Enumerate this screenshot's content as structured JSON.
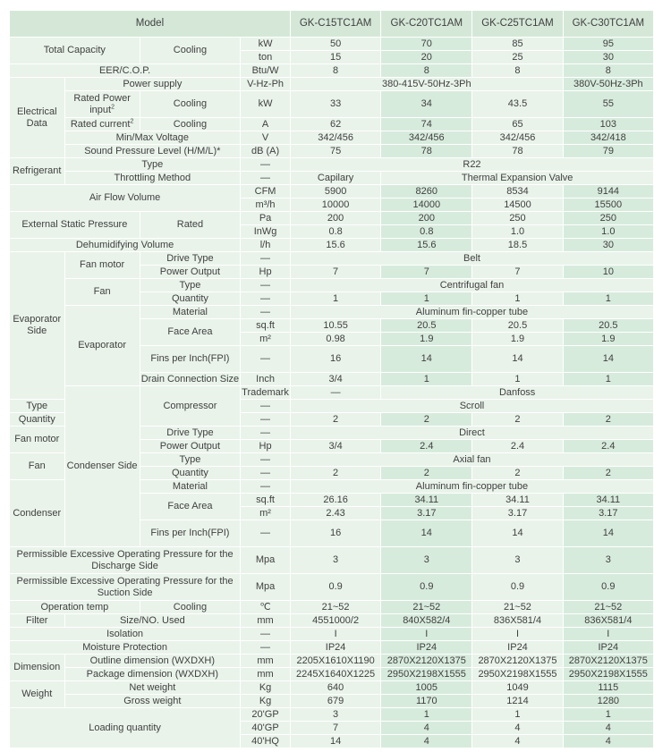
{
  "header": {
    "model_label": "Model",
    "models": [
      "GK-C15TC1AM",
      "GK-C20TC1AM",
      "GK-C25TC1AM",
      "GK-C30TC1AM"
    ]
  },
  "total_capacity": {
    "label": "Total Capacity",
    "sub": "Cooling",
    "kw_unit": "kW",
    "kw": [
      "50",
      "70",
      "85",
      "95"
    ],
    "ton_unit": "ton",
    "ton": [
      "15",
      "20",
      "25",
      "30"
    ]
  },
  "eer": {
    "label": "EER/C.O.P.",
    "unit": "Btu/W",
    "values": [
      "8",
      "8",
      "8",
      "8"
    ]
  },
  "electrical": {
    "label": "Electrical Data",
    "power_supply_label": "Power supply",
    "power_supply_unit": "V-Hz-Ph",
    "power_supply_c15_c25": "380-415V-50Hz-3Ph",
    "power_supply_c30": "380V-50Hz-3Ph",
    "rated_power_label": "Rated Power input",
    "rated_power_sup": "2",
    "rated_power_sub": "Cooling",
    "rated_power_unit": "kW",
    "rated_power": [
      "33",
      "34",
      "43.5",
      "55"
    ],
    "rated_current_label": "Rated current",
    "rated_current_sup": "2",
    "rated_current_sub": "Cooling",
    "rated_current_unit": "A",
    "rated_current": [
      "62",
      "74",
      "65",
      "103"
    ],
    "voltage_label": "Min/Max Voltage",
    "voltage_unit": "V",
    "voltage": [
      "342/456",
      "342/456",
      "342/456",
      "342/418"
    ]
  },
  "sound": {
    "label": "Sound Pressure Level (H/M/L)*",
    "unit": "dB (A)",
    "values": [
      "75",
      "78",
      "78",
      "79"
    ]
  },
  "refrigerant": {
    "label": "Refrigerant",
    "type_label": "Type",
    "dash": "—",
    "type_value": "R22",
    "throttle_label": "Throttling Method",
    "throttle_c15": "Capilary",
    "throttle_other": "Thermal Expansion Valve"
  },
  "airflow": {
    "label": "Air Flow Volume",
    "cfm_unit": "CFM",
    "cfm": [
      "5900",
      "8260",
      "8534",
      "9144"
    ],
    "m3_unit": "m³/h",
    "m3": [
      "10000",
      "14000",
      "14500",
      "15500"
    ]
  },
  "esp": {
    "label": "External Static Pressure",
    "sub": "Rated",
    "pa_unit": "Pa",
    "pa": [
      "200",
      "200",
      "250",
      "250"
    ],
    "inwg_unit": "InWg",
    "inwg": [
      "0.8",
      "0.8",
      "1.0",
      "1.0"
    ]
  },
  "dehum": {
    "label": "Dehumidifying Volume",
    "unit": "l/h",
    "values": [
      "15.6",
      "15.6",
      "18.5",
      "30"
    ]
  },
  "evaporator_side": {
    "label": "Evaporator Side",
    "fan_motor_label": "Fan motor",
    "drive_type_label": "Drive Type",
    "dash": "—",
    "drive_type_value": "Belt",
    "power_output_label": "Power Output",
    "power_output_unit": "Hp",
    "power_output": [
      "7",
      "7",
      "7",
      "10"
    ],
    "fan_label": "Fan",
    "fan_type_label": "Type",
    "fan_type_value": "Centrifugal  fan",
    "quantity_label": "Quantity",
    "fan_quantity": [
      "1",
      "1",
      "1",
      "1"
    ],
    "evaporator_label": "Evaporator",
    "material_label": "Material",
    "material_value": "Aluminum fin-copper tube",
    "face_area_label": "Face Area",
    "sqft_unit": "sq.ft",
    "face_sqft": [
      "10.55",
      "20.5",
      "20.5",
      "20.5"
    ],
    "m2_unit": "m²",
    "face_m2": [
      "0.98",
      "1.9",
      "1.9",
      "1.9"
    ],
    "fins_label": "Fins per Inch(FPI)",
    "fins": [
      "16",
      "14",
      "14",
      "14"
    ],
    "drain_label": "Drain Connection Size",
    "drain_unit": "Inch",
    "drain": [
      "3/4",
      "1",
      "1",
      "1"
    ]
  },
  "condenser_side": {
    "label": "Condenser Side",
    "dash": "—",
    "compressor_label": "Compressor",
    "trademark_label": "Trademark",
    "trademark_value": "Danfoss",
    "type_label": "Type",
    "type_value": "Scroll",
    "quantity_label": "Quantity",
    "compressor_quantity": [
      "2",
      "2",
      "2",
      "2"
    ],
    "fan_motor_label": "Fan motor",
    "drive_type_label": "Drive Type",
    "drive_type_value": "Direct",
    "power_output_label": "Power Output",
    "power_output_unit": "Hp",
    "power_output": [
      "3/4",
      "2.4",
      "2.4",
      "2.4"
    ],
    "fan_label": "Fan",
    "fan_type_value": "Axial fan",
    "fan_quantity": [
      "2",
      "2",
      "2",
      "2"
    ],
    "condenser_label": "Condenser",
    "material_label": "Material",
    "material_value": "Aluminum fin-copper tube",
    "face_area_label": "Face Area",
    "sqft_unit": "sq.ft",
    "face_sqft": [
      "26.16",
      "34.11",
      "34.11",
      "34.11"
    ],
    "m2_unit": "m²",
    "face_m2": [
      "2.43",
      "3.17",
      "3.17",
      "3.17"
    ],
    "fins_label": "Fins per Inch(FPI)",
    "fins": [
      "16",
      "14",
      "14",
      "14"
    ]
  },
  "pressure": {
    "discharge_label": "Permissible Excessive Operating Pressure for the Discharge Side",
    "unit": "Mpa",
    "discharge": [
      "3",
      "3",
      "3",
      "3"
    ],
    "suction_label": "Permissible Excessive Operating Pressure for the Suction Side",
    "suction": [
      "0.9",
      "0.9",
      "0.9",
      "0.9"
    ]
  },
  "op_temp": {
    "label": "Operation temp",
    "sub": "Cooling",
    "unit": "℃",
    "values": [
      "21~52",
      "21~52",
      "21~52",
      "21~52"
    ]
  },
  "filter": {
    "label": "Filter",
    "sub": "Size/NO. Used",
    "unit": "mm",
    "values": [
      "4551000/2",
      "840X582/4",
      "836X581/4",
      "836X581/4"
    ]
  },
  "isolation": {
    "label": "Isolation",
    "dash": "—",
    "values": [
      "I",
      "I",
      "I",
      "I"
    ]
  },
  "moisture": {
    "label": "Moisture Protection",
    "dash": "—",
    "values": [
      "IP24",
      "IP24",
      "IP24",
      "IP24"
    ]
  },
  "dimension": {
    "label": "Dimension",
    "unit": "mm",
    "outline_label": "Outline dimension (WXDXH)",
    "outline": [
      "2205X1610X1190",
      "2870X2120X1375",
      "2870X2120X1375",
      "2870X2120X1375"
    ],
    "package_label": "Package dimension (WXDXH)",
    "package": [
      "2245X1640X1225",
      "2950X2198X1555",
      "2950X2198X1555",
      "2950X2198X1555"
    ]
  },
  "weight": {
    "label": "Weight",
    "unit": "Kg",
    "net_label": "Net weight",
    "net": [
      "640",
      "1005",
      "1049",
      "1115"
    ],
    "gross_label": "Gross weight",
    "gross": [
      "679",
      "1170",
      "1214",
      "1280"
    ]
  },
  "loading": {
    "label": "Loading quantity",
    "gp20_unit": "20'GP",
    "gp20": [
      "3",
      "1",
      "1",
      "1"
    ],
    "gp40_unit": "40'GP",
    "gp40": [
      "7",
      "4",
      "4",
      "4"
    ],
    "hq40_unit": "40'HQ",
    "hq40": [
      "14",
      "4",
      "4",
      "4"
    ]
  }
}
